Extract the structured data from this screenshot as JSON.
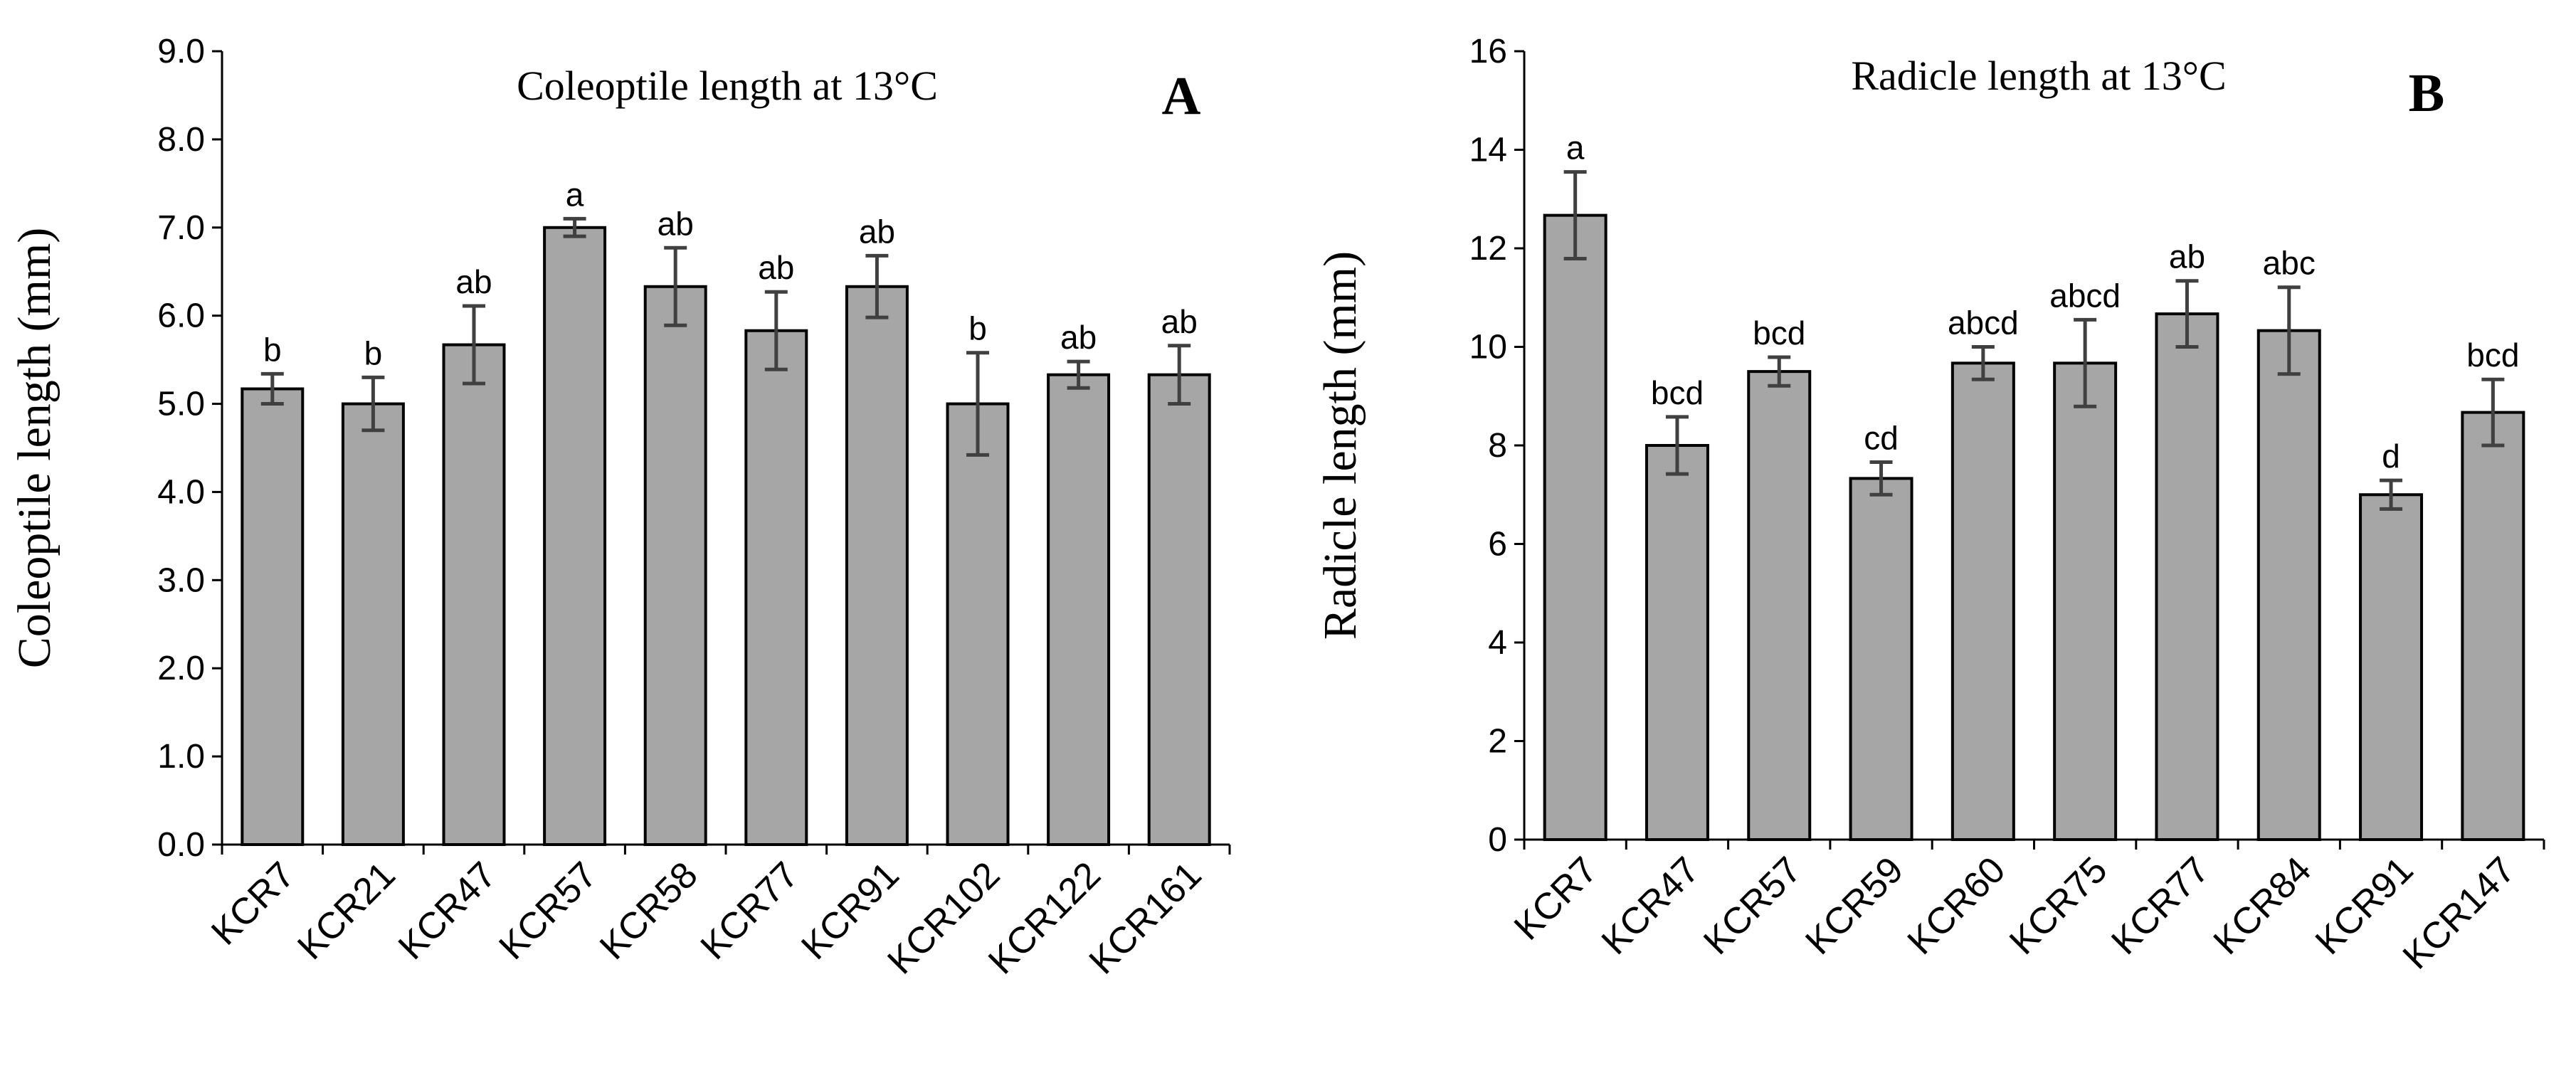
{
  "chart_data": [
    {
      "type": "bar",
      "panel_label": "A",
      "title": "Coleoptile length at 13°C",
      "xlabel": "",
      "ylabel": "Coleoptile length (mm)",
      "ylim": [
        0,
        9
      ],
      "ytick_step": 1,
      "ytick_decimals": 1,
      "grid": false,
      "categories": [
        "KCR7",
        "KCR21",
        "KCR47",
        "KCR57",
        "KCR58",
        "KCR77",
        "KCR91",
        "KCR102",
        "KCR122",
        "KCR161"
      ],
      "values": [
        5.17,
        5.0,
        5.67,
        7.0,
        6.33,
        5.83,
        6.33,
        5.0,
        5.33,
        5.33
      ],
      "errors": [
        0.17,
        0.3,
        0.44,
        0.1,
        0.44,
        0.44,
        0.35,
        0.58,
        0.15,
        0.33
      ],
      "significance": [
        "b",
        "b",
        "ab",
        "a",
        "ab",
        "ab",
        "ab",
        "b",
        "ab",
        "ab"
      ]
    },
    {
      "type": "bar",
      "panel_label": "B",
      "title": "Radicle length at 13°C",
      "xlabel": "",
      "ylabel": "Radicle length (mm)",
      "ylim": [
        0,
        16
      ],
      "ytick_step": 2,
      "ytick_decimals": 0,
      "grid": false,
      "categories": [
        "KCR7",
        "KCR47",
        "KCR57",
        "KCR59",
        "KCR60",
        "KCR75",
        "KCR77",
        "KCR84",
        "KCR91",
        "KCR147"
      ],
      "values": [
        12.67,
        8.0,
        9.5,
        7.33,
        9.67,
        9.67,
        10.67,
        10.33,
        7.0,
        8.67
      ],
      "errors": [
        0.88,
        0.58,
        0.29,
        0.33,
        0.33,
        0.88,
        0.67,
        0.88,
        0.29,
        0.67
      ],
      "significance": [
        "a",
        "bcd",
        "bcd",
        "cd",
        "abcd",
        "abcd",
        "ab",
        "abc",
        "d",
        "bcd"
      ]
    }
  ]
}
